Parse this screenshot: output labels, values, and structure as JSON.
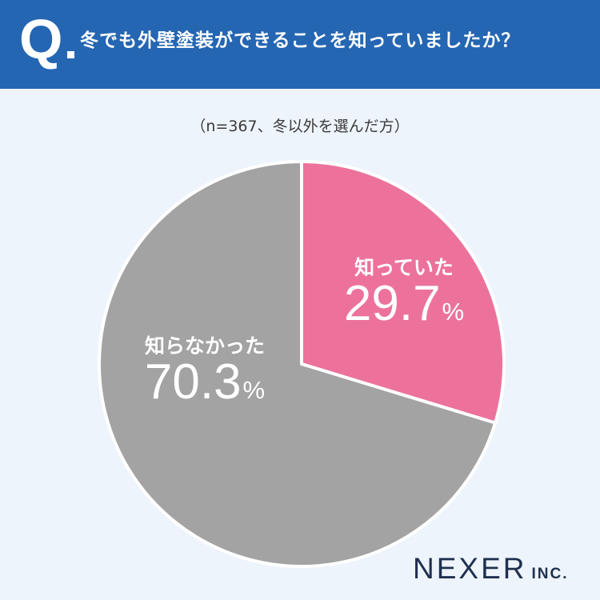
{
  "header": {
    "q_mark": "Q",
    "question": "冬でも外壁塗装ができることを知っていましたか？"
  },
  "subtitle": "（n=367、冬以外を選んだ方）",
  "chart_data": {
    "type": "pie",
    "categories": [
      "知っていた",
      "知らなかった"
    ],
    "values": [
      29.7,
      70.3
    ],
    "value_labels": [
      "29.7",
      "70.3"
    ],
    "unit": "%",
    "colors": [
      "#ec729c",
      "#a3a3a3"
    ],
    "start": "12 o'clock, clockwise"
  },
  "logo": {
    "name": "NEXER",
    "suffix": "INC."
  }
}
